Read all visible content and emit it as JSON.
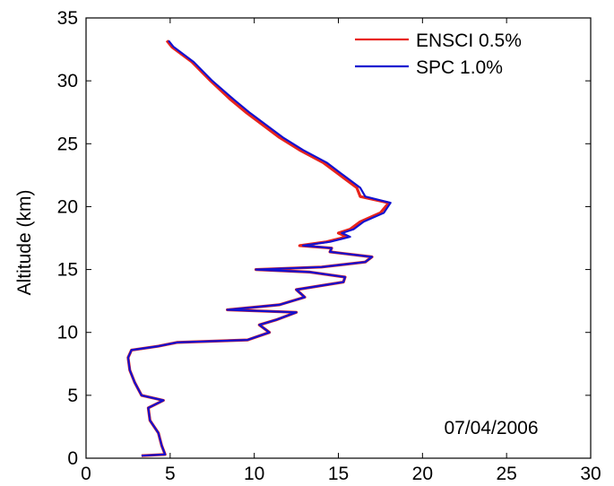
{
  "chart_data": {
    "type": "line",
    "title": "",
    "xlabel": "",
    "ylabel": "Altitude (km)",
    "xlim": [
      0,
      30
    ],
    "ylim": [
      0,
      35
    ],
    "xticks": [
      "0",
      "5",
      "10",
      "15",
      "20",
      "25",
      "30"
    ],
    "yticks": [
      "0",
      "5",
      "10",
      "15",
      "20",
      "25",
      "30",
      "35"
    ],
    "grid": false,
    "legend_position": "top-right",
    "annotation": "07/04/2006",
    "series": [
      {
        "name": "ENSCI 0.5%",
        "color": "#e8251c",
        "points": [
          [
            3.3,
            0.2
          ],
          [
            4.7,
            0.3
          ],
          [
            4.5,
            1
          ],
          [
            4.3,
            2
          ],
          [
            3.8,
            3
          ],
          [
            3.7,
            4
          ],
          [
            4.6,
            4.6
          ],
          [
            3.3,
            5
          ],
          [
            2.9,
            6
          ],
          [
            2.6,
            7
          ],
          [
            2.5,
            8
          ],
          [
            2.7,
            8.6
          ],
          [
            4.3,
            8.9
          ],
          [
            5.4,
            9.2
          ],
          [
            9.6,
            9.4
          ],
          [
            10.9,
            10
          ],
          [
            10.3,
            10.6
          ],
          [
            11.3,
            11
          ],
          [
            12.5,
            11.6
          ],
          [
            8.4,
            11.8
          ],
          [
            11.5,
            12.2
          ],
          [
            13.0,
            12.8
          ],
          [
            12.5,
            13.4
          ],
          [
            15.3,
            14
          ],
          [
            15.4,
            14.4
          ],
          [
            13.3,
            14.8
          ],
          [
            10.1,
            15
          ],
          [
            14.0,
            15.2
          ],
          [
            16.6,
            15.6
          ],
          [
            17.0,
            16.0
          ],
          [
            14.5,
            16.4
          ],
          [
            14.6,
            16.7
          ],
          [
            12.7,
            16.9
          ],
          [
            14.3,
            17.2
          ],
          [
            15.5,
            17.6
          ],
          [
            15.0,
            17.9
          ],
          [
            15.7,
            18.2
          ],
          [
            16.3,
            18.8
          ],
          [
            17.5,
            19.5
          ],
          [
            18.0,
            20.3
          ],
          [
            16.3,
            20.8
          ],
          [
            16.1,
            21.5
          ],
          [
            15.1,
            22.5
          ],
          [
            14.1,
            23.5
          ],
          [
            12.7,
            24.5
          ],
          [
            11.5,
            25.5
          ],
          [
            10.5,
            26.5
          ],
          [
            9.5,
            27.5
          ],
          [
            8.6,
            28.5
          ],
          [
            7.4,
            30
          ],
          [
            6.3,
            31.5
          ],
          [
            5.1,
            32.7
          ],
          [
            4.8,
            33.2
          ]
        ]
      },
      {
        "name": "SPC 1.0%",
        "color": "#1212d0",
        "points": [
          [
            3.3,
            0.2
          ],
          [
            4.7,
            0.3
          ],
          [
            4.5,
            1
          ],
          [
            4.3,
            2
          ],
          [
            3.8,
            3
          ],
          [
            3.7,
            4
          ],
          [
            4.6,
            4.6
          ],
          [
            3.3,
            5
          ],
          [
            2.9,
            6
          ],
          [
            2.6,
            7
          ],
          [
            2.5,
            8
          ],
          [
            2.7,
            8.6
          ],
          [
            4.3,
            8.9
          ],
          [
            5.4,
            9.2
          ],
          [
            9.6,
            9.4
          ],
          [
            10.9,
            10
          ],
          [
            10.3,
            10.6
          ],
          [
            11.3,
            11
          ],
          [
            12.5,
            11.6
          ],
          [
            8.4,
            11.8
          ],
          [
            11.5,
            12.2
          ],
          [
            13.0,
            12.8
          ],
          [
            12.5,
            13.4
          ],
          [
            15.3,
            14
          ],
          [
            15.4,
            14.4
          ],
          [
            13.3,
            14.8
          ],
          [
            10.1,
            15
          ],
          [
            14.0,
            15.2
          ],
          [
            16.6,
            15.6
          ],
          [
            17.0,
            16.0
          ],
          [
            14.5,
            16.4
          ],
          [
            14.6,
            16.7
          ],
          [
            12.9,
            16.9
          ],
          [
            14.5,
            17.2
          ],
          [
            15.7,
            17.6
          ],
          [
            15.2,
            17.9
          ],
          [
            15.9,
            18.2
          ],
          [
            16.5,
            18.8
          ],
          [
            17.7,
            19.5
          ],
          [
            18.1,
            20.3
          ],
          [
            16.6,
            20.8
          ],
          [
            16.3,
            21.5
          ],
          [
            15.3,
            22.5
          ],
          [
            14.3,
            23.5
          ],
          [
            12.9,
            24.5
          ],
          [
            11.7,
            25.5
          ],
          [
            10.7,
            26.5
          ],
          [
            9.7,
            27.5
          ],
          [
            8.8,
            28.5
          ],
          [
            7.5,
            30
          ],
          [
            6.4,
            31.5
          ],
          [
            5.2,
            32.7
          ],
          [
            4.9,
            33.2
          ]
        ]
      }
    ]
  }
}
